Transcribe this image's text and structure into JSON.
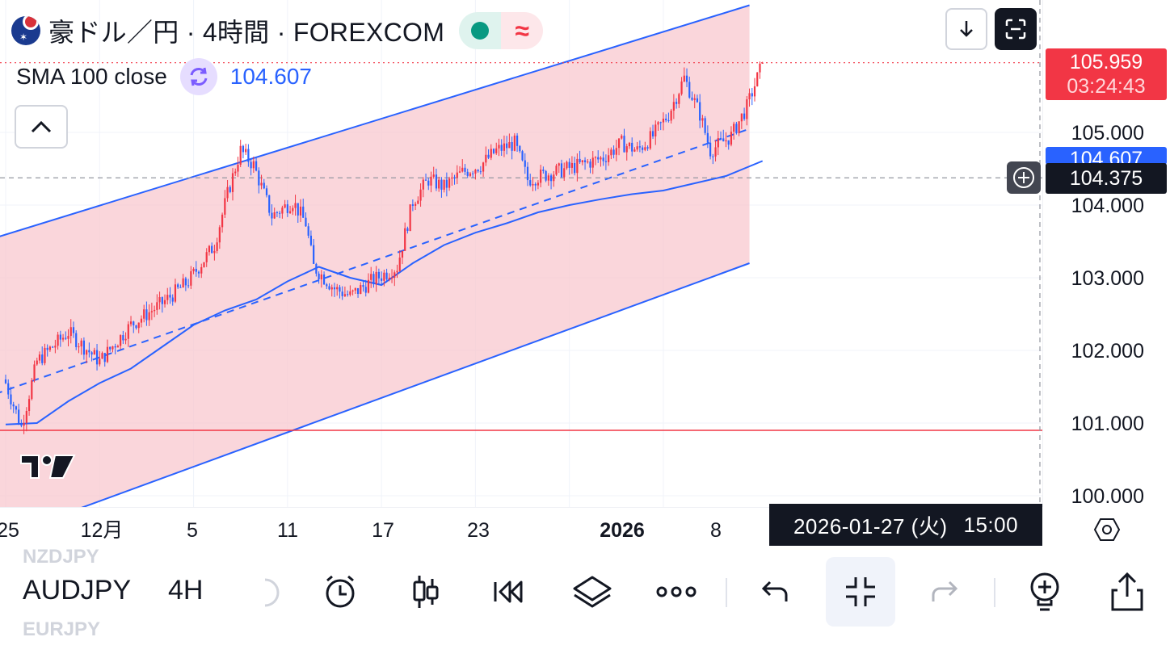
{
  "header": {
    "symbol_title": "豪ドル／円 · 4時間 · FOREXCOM",
    "status_green_icon": "market-open-dot",
    "status_red_icon": "delayed-data-icon",
    "status_red_glyph": "≈"
  },
  "indicator": {
    "label": "SMA 100 close",
    "value": "104.607",
    "icon": "refresh-icon"
  },
  "price_axis": {
    "last_price": "105.959",
    "countdown": "03:24:43",
    "sma_tag": "104.607",
    "crosshair_price": "104.375"
  },
  "crosshair_time": {
    "date": "2026-01-27 (火)",
    "time": "15:00"
  },
  "colors": {
    "up": "#f23645",
    "down": "#2962ff",
    "sma": "#2962ff",
    "channel": "#2962ff",
    "channel_fill": "#f8c8cf",
    "level_line": "#f23645"
  },
  "toolbar": {
    "symbol": "AUDJPY",
    "interval": "4H",
    "ghost_prev_symbol": "NZDJPY",
    "ghost_next_symbol": "EURJPY",
    "icons": [
      "alarm-clock-icon",
      "candles-icon",
      "replay-icon",
      "layers-icon",
      "more-icon",
      "undo-icon",
      "collapse-icon",
      "redo-icon",
      "idea-icon",
      "share-icon"
    ]
  },
  "chart_data": {
    "type": "candlestick",
    "title": "豪ドル／円 · 4時間 · FOREXCOM",
    "xlabel": "",
    "ylabel": "",
    "ylim": [
      99.85,
      106.75
    ],
    "yticks": [
      "105.000",
      "104.000",
      "103.000",
      "102.000",
      "101.000",
      "100.000"
    ],
    "xticks": [
      "25",
      "12月",
      "5",
      "11",
      "17",
      "23",
      "2026",
      "8"
    ],
    "grid": true,
    "bars_start_date": "2025-11-25",
    "bars_per_day": 6,
    "series": [
      {
        "name": "AUDJPY 4H",
        "kind": "ohlc",
        "close_anchors": [
          [
            0,
            101.55
          ],
          [
            6,
            100.95
          ],
          [
            12,
            101.85
          ],
          [
            24,
            102.25
          ],
          [
            30,
            102.05
          ],
          [
            36,
            101.85
          ],
          [
            48,
            102.35
          ],
          [
            60,
            102.65
          ],
          [
            70,
            102.95
          ],
          [
            80,
            103.45
          ],
          [
            85,
            104.15
          ],
          [
            90,
            104.75
          ],
          [
            95,
            104.55
          ],
          [
            102,
            103.85
          ],
          [
            110,
            104.05
          ],
          [
            115,
            103.75
          ],
          [
            118,
            103.15
          ],
          [
            126,
            102.85
          ],
          [
            132,
            102.75
          ],
          [
            140,
            102.95
          ],
          [
            150,
            103.15
          ],
          [
            156,
            104.05
          ],
          [
            162,
            104.35
          ],
          [
            168,
            104.25
          ],
          [
            175,
            104.45
          ],
          [
            182,
            104.55
          ],
          [
            188,
            104.75
          ],
          [
            195,
            104.85
          ],
          [
            200,
            104.35
          ],
          [
            210,
            104.45
          ],
          [
            220,
            104.55
          ],
          [
            229,
            104.65
          ],
          [
            236,
            104.85
          ],
          [
            242,
            104.75
          ],
          [
            248,
            104.95
          ],
          [
            254,
            105.25
          ],
          [
            260,
            105.75
          ],
          [
            266,
            105.25
          ],
          [
            270,
            104.75
          ],
          [
            278,
            104.95
          ],
          [
            284,
            105.35
          ],
          [
            290,
            105.95
          ]
        ]
      },
      {
        "name": "SMA 100 close",
        "kind": "line",
        "points": [
          [
            0,
            100.98
          ],
          [
            12,
            101.0
          ],
          [
            24,
            101.3
          ],
          [
            36,
            101.55
          ],
          [
            48,
            101.75
          ],
          [
            60,
            102.05
          ],
          [
            72,
            102.35
          ],
          [
            84,
            102.55
          ],
          [
            96,
            102.7
          ],
          [
            108,
            102.95
          ],
          [
            120,
            103.15
          ],
          [
            132,
            103.0
          ],
          [
            144,
            102.9
          ],
          [
            156,
            103.2
          ],
          [
            168,
            103.45
          ],
          [
            180,
            103.62
          ],
          [
            192,
            103.75
          ],
          [
            204,
            103.9
          ],
          [
            216,
            104.0
          ],
          [
            228,
            104.08
          ],
          [
            240,
            104.15
          ],
          [
            252,
            104.2
          ],
          [
            264,
            104.3
          ],
          [
            276,
            104.4
          ],
          [
            290,
            104.607
          ]
        ]
      },
      {
        "name": "Channel upper",
        "kind": "line",
        "points": [
          [
            -4,
            103.55
          ],
          [
            285,
            106.75
          ]
        ]
      },
      {
        "name": "Channel middle",
        "kind": "line",
        "points": [
          [
            -4,
            101.4
          ],
          [
            285,
            105.05
          ]
        ]
      },
      {
        "name": "Channel lower",
        "kind": "line",
        "points": [
          [
            -4,
            99.4
          ],
          [
            285,
            103.2
          ]
        ]
      },
      {
        "name": "Horizontal level",
        "kind": "hline",
        "value": 100.9
      },
      {
        "name": "Crosshair level",
        "kind": "hline",
        "value": 104.375
      }
    ],
    "last_price": 105.959,
    "crosshair_x_date": "2026-01-27 15:00"
  }
}
